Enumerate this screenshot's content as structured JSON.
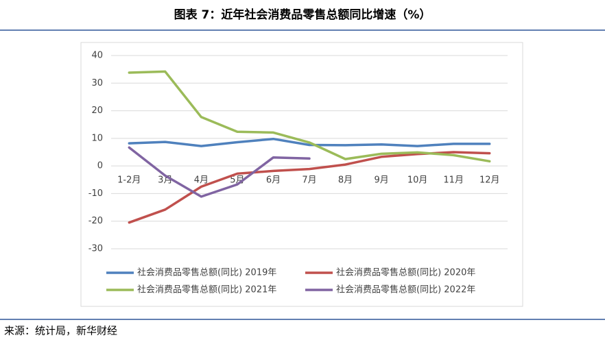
{
  "chart_data": {
    "type": "line",
    "title": "图表 7：近年社会消费品零售总额同比增速（%）",
    "categories": [
      "1-2月",
      "3月",
      "4月",
      "5月",
      "6月",
      "7月",
      "8月",
      "9月",
      "10月",
      "11月",
      "12月"
    ],
    "series": [
      {
        "name": "社会消费品零售总额(同比) 2019年",
        "color": "#4f81bd",
        "values": [
          8.2,
          8.7,
          7.2,
          8.6,
          9.8,
          7.6,
          7.5,
          7.8,
          7.2,
          8.0,
          8.0
        ]
      },
      {
        "name": "社会消费品零售总额(同比) 2020年",
        "color": "#c0504d",
        "values": [
          -20.5,
          -15.8,
          -7.5,
          -2.8,
          -1.8,
          -1.1,
          0.5,
          3.3,
          4.3,
          5.0,
          4.6
        ]
      },
      {
        "name": "社会消费品零售总额(同比) 2021年",
        "color": "#9bbb59",
        "values": [
          33.8,
          34.2,
          17.7,
          12.4,
          12.1,
          8.5,
          2.5,
          4.4,
          4.9,
          3.9,
          1.7
        ]
      },
      {
        "name": "社会消费品零售总额(同比) 2022年",
        "color": "#8064a2",
        "values": [
          6.7,
          -3.5,
          -11.1,
          -6.7,
          3.1,
          2.7,
          null,
          null,
          null,
          null,
          null
        ]
      }
    ],
    "ylim": [
      -30,
      40
    ],
    "yticks": [
      -30,
      -20,
      -10,
      0,
      10,
      20,
      30,
      40
    ],
    "grid": true,
    "legend": "bottom",
    "source": "来源：统计局，新华财经"
  }
}
